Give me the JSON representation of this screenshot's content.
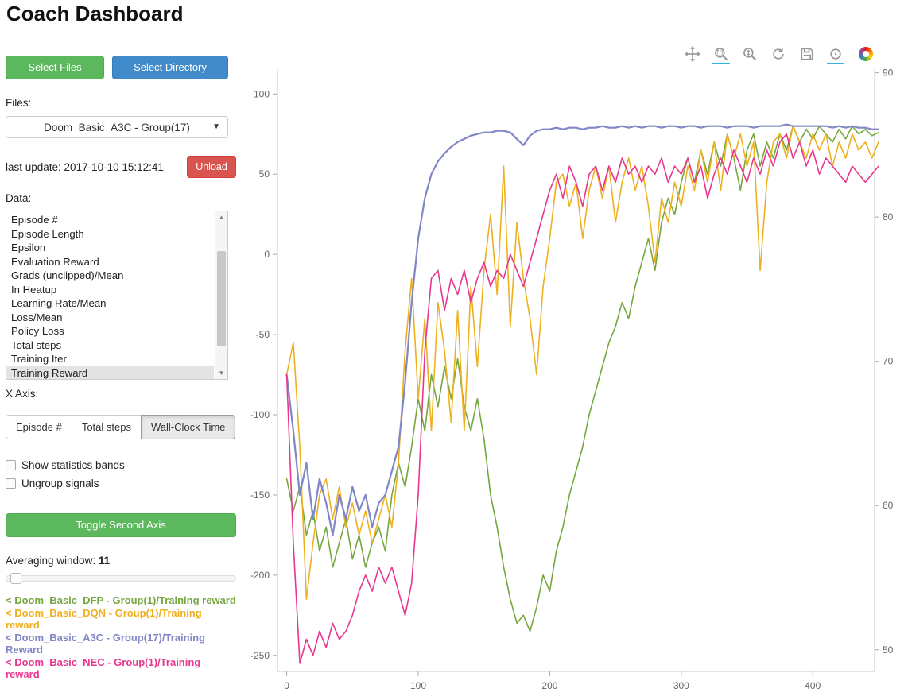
{
  "header": {
    "title": "Coach Dashboard"
  },
  "icons": {
    "dropdown_caret": "▼",
    "scroll_up": "▲",
    "scroll_down": "▼"
  },
  "sidebar": {
    "select_files": "Select Files",
    "select_directory": "Select Directory",
    "files_label": "Files:",
    "file_dropdown": "Doom_Basic_A3C - Group(17)",
    "last_update": "last update: 2017-10-10 15:12:41",
    "unload": "Unload",
    "data_label": "Data:",
    "data_items": [
      "Episode #",
      "Episode Length",
      "Epsilon",
      "Evaluation Reward",
      "Grads (unclipped)/Mean",
      "In Heatup",
      "Learning Rate/Mean",
      "Loss/Mean",
      "Policy Loss",
      "Total steps",
      "Training Iter",
      "Training Reward"
    ],
    "selected_data_item": "Training Reward",
    "x_axis_label": "X Axis:",
    "x_axis_options": [
      "Episode #",
      "Total steps",
      "Wall-Clock Time"
    ],
    "x_axis_selected": "Wall-Clock Time",
    "checkboxes": [
      {
        "label": "Show statistics bands",
        "checked": false
      },
      {
        "label": "Ungroup signals",
        "checked": false
      }
    ],
    "toggle_second_axis": "Toggle Second Axis",
    "averaging_label": "Averaging window:",
    "averaging_value": "11",
    "legend": [
      {
        "label": "< Doom_Basic_DFP - Group(1)/Training reward",
        "color": "#74a73e"
      },
      {
        "label": "< Doom_Basic_DQN - Group(1)/Training reward",
        "color": "#eeb01f"
      },
      {
        "label": "< Doom_Basic_A3C - Group(17)/Training Reward",
        "color": "#8187c6"
      },
      {
        "label": "< Doom_Basic_NEC - Group(1)/Training reward",
        "color": "#e8368f"
      }
    ]
  },
  "toolbar": {
    "tools": [
      {
        "tool": "pan",
        "active": false
      },
      {
        "tool": "box-zoom",
        "active": true
      },
      {
        "tool": "wheel-zoom",
        "active": false
      },
      {
        "tool": "reset",
        "active": false
      },
      {
        "tool": "save",
        "active": false
      },
      {
        "tool": "hover",
        "active": true
      },
      {
        "tool": "bokeh-logo",
        "active": false
      }
    ]
  },
  "chart_data": {
    "type": "line",
    "title": "",
    "xlabel": "",
    "ylabel": "",
    "grid": false,
    "legend_position": "sidebar",
    "x_axis": {
      "ticks": [
        0,
        100,
        200,
        300,
        400
      ],
      "range": [
        -7,
        447
      ]
    },
    "y_axis_left": {
      "ticks": [
        100,
        50,
        0,
        -50,
        -100,
        -150,
        -200,
        -250
      ],
      "range": [
        -260,
        115
      ]
    },
    "y_axis_right": {
      "ticks": [
        90,
        80,
        70,
        60,
        50
      ],
      "range": [
        48.5,
        90.2
      ]
    },
    "x": [
      0,
      5,
      10,
      15,
      20,
      25,
      30,
      35,
      40,
      45,
      50,
      55,
      60,
      65,
      70,
      75,
      80,
      85,
      90,
      95,
      100,
      105,
      110,
      115,
      120,
      125,
      130,
      135,
      140,
      145,
      150,
      155,
      160,
      165,
      170,
      175,
      180,
      185,
      190,
      195,
      200,
      205,
      210,
      215,
      220,
      225,
      230,
      235,
      240,
      245,
      250,
      255,
      260,
      265,
      270,
      275,
      280,
      285,
      290,
      295,
      300,
      305,
      310,
      315,
      320,
      325,
      330,
      335,
      340,
      345,
      350,
      355,
      360,
      365,
      370,
      375,
      380,
      385,
      390,
      395,
      400,
      405,
      410,
      415,
      420,
      425,
      430,
      435,
      440,
      445,
      450
    ],
    "series": [
      {
        "name": "Doom_Basic_DFP - Group(1)/Training reward",
        "color": "#74a73e",
        "axis": "left",
        "width": 1.6,
        "values": [
          -140,
          -160,
          -145,
          -175,
          -160,
          -185,
          -170,
          -195,
          -180,
          -165,
          -190,
          -175,
          -195,
          -180,
          -170,
          -185,
          -150,
          -130,
          -145,
          -120,
          -90,
          -110,
          -75,
          -95,
          -70,
          -90,
          -65,
          -95,
          -110,
          -90,
          -115,
          -150,
          -170,
          -195,
          -215,
          -230,
          -225,
          -235,
          -220,
          -200,
          -210,
          -185,
          -170,
          -150,
          -135,
          -120,
          -100,
          -85,
          -70,
          -55,
          -45,
          -30,
          -40,
          -20,
          -5,
          10,
          -10,
          20,
          35,
          25,
          45,
          60,
          45,
          65,
          50,
          70,
          55,
          75,
          60,
          40,
          65,
          75,
          55,
          70,
          60,
          75,
          65,
          80,
          70,
          78,
          72,
          80,
          75,
          70,
          78,
          72,
          80,
          75,
          78,
          74,
          76
        ]
      },
      {
        "name": "Doom_Basic_DQN - Group(1)/Training reward",
        "color": "#eeb01f",
        "axis": "left",
        "width": 1.6,
        "values": [
          -75,
          -55,
          -120,
          -215,
          -180,
          -150,
          -140,
          -165,
          -145,
          -170,
          -155,
          -175,
          -160,
          -180,
          -165,
          -150,
          -170,
          -130,
          -60,
          -15,
          -90,
          -40,
          -110,
          -30,
          -60,
          -105,
          -35,
          -110,
          -20,
          -70,
          -10,
          25,
          -25,
          55,
          -45,
          20,
          -15,
          -40,
          -75,
          -20,
          10,
          45,
          50,
          30,
          45,
          10,
          40,
          55,
          35,
          55,
          20,
          45,
          60,
          40,
          55,
          30,
          -5,
          35,
          20,
          45,
          30,
          55,
          40,
          65,
          45,
          70,
          40,
          75,
          60,
          75,
          55,
          70,
          -10,
          45,
          70,
          75,
          60,
          80,
          70,
          60,
          75,
          65,
          75,
          55,
          70,
          60,
          75,
          65,
          70,
          60,
          70
        ]
      },
      {
        "name": "Doom_Basic_A3C - Group(17)/Training Reward",
        "color": "#8187c6",
        "axis": "left",
        "width": 2.2,
        "values": [
          -75,
          -110,
          -150,
          -130,
          -165,
          -140,
          -155,
          -175,
          -150,
          -165,
          -145,
          -160,
          -150,
          -170,
          -155,
          -150,
          -135,
          -120,
          -80,
          -30,
          10,
          35,
          50,
          58,
          63,
          67,
          70,
          72,
          74,
          75,
          76,
          76,
          77,
          77,
          76,
          72,
          68,
          74,
          77,
          78,
          78,
          79,
          78,
          79,
          79,
          78,
          79,
          79,
          80,
          79,
          79,
          80,
          79,
          80,
          79,
          80,
          80,
          79,
          80,
          80,
          79,
          80,
          80,
          79,
          80,
          80,
          80,
          79,
          80,
          80,
          80,
          79,
          80,
          80,
          80,
          80,
          81,
          80,
          80,
          80,
          80,
          80,
          80,
          79,
          80,
          79,
          80,
          79,
          79,
          78,
          78
        ]
      },
      {
        "name": "Doom_Basic_NEC - Group(1)/Training reward",
        "color": "#e8368f",
        "axis": "left",
        "width": 1.6,
        "values": [
          -75,
          -180,
          -255,
          -240,
          -250,
          -235,
          -245,
          -230,
          -240,
          -235,
          -225,
          -210,
          -200,
          -210,
          -195,
          -205,
          -195,
          -210,
          -225,
          -205,
          -150,
          -60,
          -15,
          -10,
          -35,
          -15,
          -25,
          -10,
          -30,
          -15,
          -5,
          -20,
          -10,
          -15,
          0,
          -10,
          -20,
          -5,
          10,
          25,
          40,
          50,
          35,
          55,
          45,
          30,
          50,
          55,
          40,
          55,
          45,
          60,
          50,
          55,
          45,
          55,
          50,
          60,
          45,
          55,
          50,
          60,
          45,
          55,
          35,
          50,
          60,
          50,
          65,
          55,
          45,
          60,
          50,
          65,
          55,
          70,
          75,
          60,
          70,
          55,
          65,
          50,
          60,
          55,
          50,
          45,
          55,
          50,
          45,
          50,
          55
        ]
      }
    ]
  }
}
